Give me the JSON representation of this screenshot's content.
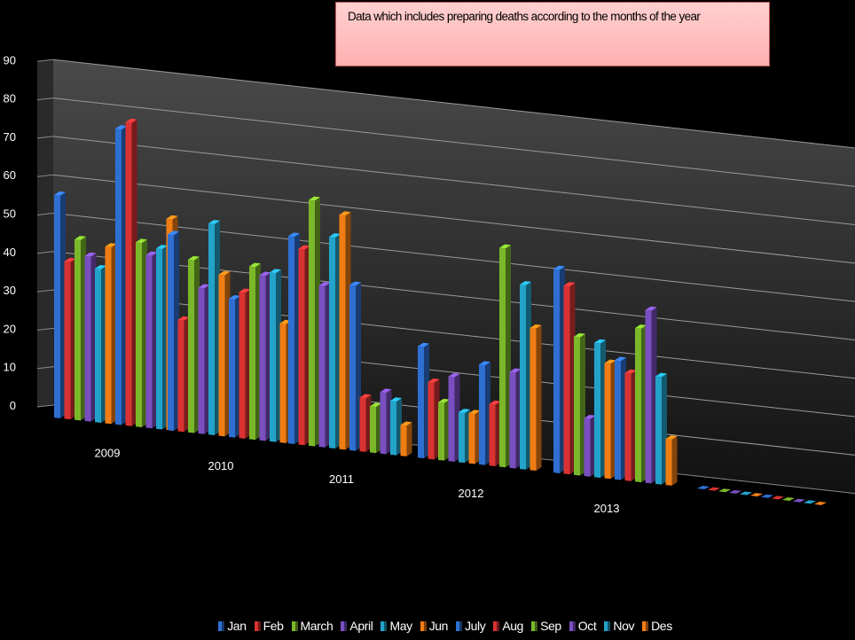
{
  "chart_data": {
    "type": "bar",
    "title": "Data which includes preparing deaths according to the months of the year",
    "categories": [
      "2009",
      "2010",
      "2011",
      "2012",
      "2013"
    ],
    "ylim": [
      0,
      90
    ],
    "yticks": [
      0,
      10,
      20,
      30,
      40,
      50,
      60,
      70,
      80,
      90
    ],
    "grid": true,
    "legend_position": "bottom",
    "three_d": true,
    "series": [
      {
        "name": "Jan",
        "color": "#2e6fd1",
        "values": [
          58,
          51,
          54,
          29,
          53
        ]
      },
      {
        "name": "Feb",
        "color": "#d93232",
        "values": [
          41,
          29,
          51,
          20,
          49
        ]
      },
      {
        "name": "March",
        "color": "#7ab82a",
        "values": [
          47,
          45,
          64,
          15,
          36
        ]
      },
      {
        "name": "April",
        "color": "#7a4fbf",
        "values": [
          43,
          38,
          42,
          22,
          15
        ]
      },
      {
        "name": "May",
        "color": "#23a3c9",
        "values": [
          40,
          55,
          55,
          13,
          35
        ]
      },
      {
        "name": "Jun",
        "color": "#f07d14",
        "values": [
          46,
          42,
          61,
          13,
          30
        ]
      },
      {
        "name": "July",
        "color": "#2e6fd1",
        "values": [
          77,
          36,
          43,
          26,
          31
        ]
      },
      {
        "name": "Aug",
        "color": "#d93232",
        "values": [
          79,
          38,
          14,
          16,
          28
        ]
      },
      {
        "name": "Sep",
        "color": "#7ab82a",
        "values": [
          48,
          45,
          12,
          57,
          40
        ]
      },
      {
        "name": "Oct",
        "color": "#7a4fbf",
        "values": [
          45,
          43,
          16,
          25,
          45
        ]
      },
      {
        "name": "Nov",
        "color": "#23a3c9",
        "values": [
          47,
          44,
          14,
          48,
          28
        ]
      },
      {
        "name": "Des",
        "color": "#f07d14",
        "values": [
          55,
          31,
          8,
          37,
          12
        ]
      }
    ]
  }
}
